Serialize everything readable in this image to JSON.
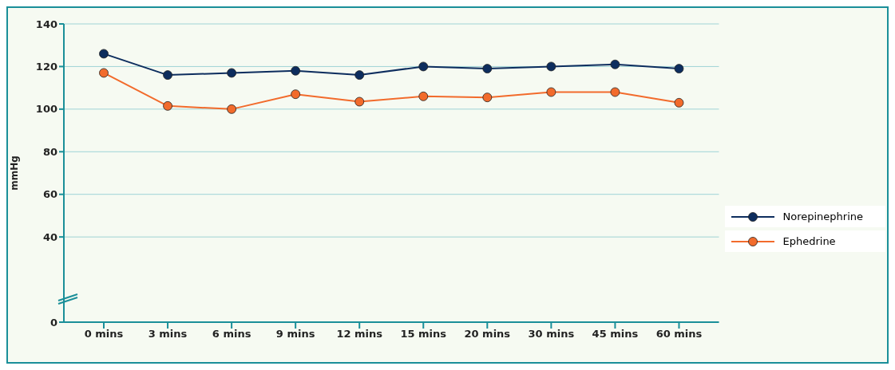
{
  "chart_data": {
    "type": "line",
    "ylabel": "mmHg",
    "categories": [
      "0 mins",
      "3 mins",
      "6 mins",
      "9 mins",
      "12 mins",
      "15 mins",
      "20 mins",
      "30 mins",
      "45 mins",
      "60 mins"
    ],
    "series": [
      {
        "name": "Norepinephrine",
        "color": "#0d2d5e",
        "values": [
          126,
          116,
          117,
          118,
          116,
          120,
          119,
          120,
          121,
          119
        ]
      },
      {
        "name": "Ephedrine",
        "color": "#f26b2c",
        "values": [
          117,
          101.5,
          100,
          107,
          103.5,
          106,
          105.5,
          108,
          108,
          103
        ]
      }
    ],
    "ylim": [
      0,
      140
    ],
    "yticks": [
      0,
      40,
      60,
      80,
      100,
      120,
      140
    ],
    "grid": "y",
    "legend": "right",
    "marker": "circle",
    "line_style": "solid"
  }
}
